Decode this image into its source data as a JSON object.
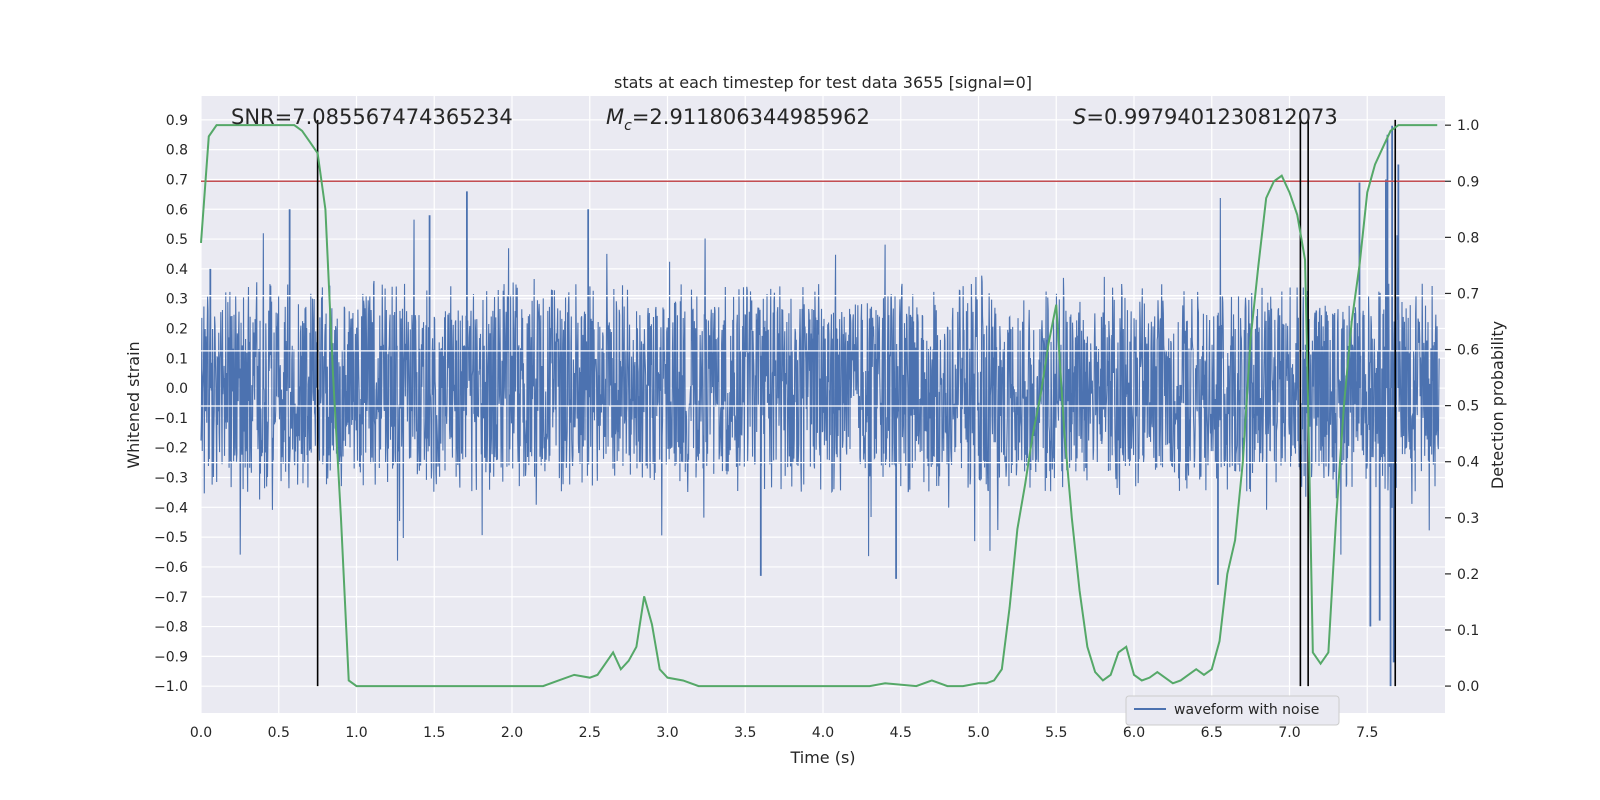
{
  "chart_data": {
    "type": "line",
    "title": "stats at each timestep for test data 3655 [signal=0]",
    "xlabel": "Time (s)",
    "ylabel_left": "Whitened strain",
    "ylabel_right": "Detection probability",
    "xlim": [
      0.0,
      8.0
    ],
    "ylim_left": [
      -1.09,
      0.98
    ],
    "ylim_right": [
      -0.048,
      1.052
    ],
    "x_ticks": [
      "0.0",
      "0.5",
      "1.0",
      "1.5",
      "2.0",
      "2.5",
      "3.0",
      "3.5",
      "4.0",
      "4.5",
      "5.0",
      "5.5",
      "6.0",
      "6.5",
      "7.0",
      "7.5"
    ],
    "x_tick_values": [
      0.0,
      0.5,
      1.0,
      1.5,
      2.0,
      2.5,
      3.0,
      3.5,
      4.0,
      4.5,
      5.0,
      5.5,
      6.0,
      6.5,
      7.0,
      7.5
    ],
    "y_left_ticks": [
      "0.9",
      "0.8",
      "0.7",
      "0.6",
      "0.5",
      "0.4",
      "0.3",
      "0.2",
      "0.1",
      "0.0",
      "−0.1",
      "−0.2",
      "−0.3",
      "−0.4",
      "−0.5",
      "−0.6",
      "−0.7",
      "−0.8",
      "−0.9",
      "−1.0"
    ],
    "y_left_tick_values": [
      0.9,
      0.8,
      0.7,
      0.6,
      0.5,
      0.4,
      0.3,
      0.2,
      0.1,
      0.0,
      -0.1,
      -0.2,
      -0.3,
      -0.4,
      -0.5,
      -0.6,
      -0.7,
      -0.8,
      -0.9,
      -1.0
    ],
    "y_right_ticks": [
      "1.0",
      "0.9",
      "0.8",
      "0.7",
      "0.6",
      "0.5",
      "0.4",
      "0.3",
      "0.2",
      "0.1",
      "0.0"
    ],
    "y_right_tick_values": [
      1.0,
      0.9,
      0.8,
      0.7,
      0.6,
      0.5,
      0.4,
      0.3,
      0.2,
      0.1,
      0.0
    ],
    "annotations": {
      "snr": "SNR=7.085567474365234",
      "mc_prefix": "M",
      "mc_sub": "c",
      "mc_value": "=2.911806344985962",
      "s_prefix": "S",
      "s_value": "=0.9979401230812073"
    },
    "threshold": {
      "axis": "right",
      "value": 0.9,
      "color": "#c44e52"
    },
    "vertical_lines": [
      0.75,
      7.07,
      7.12,
      7.68
    ],
    "vertical_line_range": [
      -1.0,
      0.9
    ],
    "waveform": {
      "name": "waveform with noise",
      "color": "#4c72b0",
      "core_amplitude": 0.27,
      "spike_amplitude": 0.38,
      "samples": 3000,
      "seed": 3655,
      "outliers": [
        {
          "x": 1.71,
          "y": 0.66
        },
        {
          "x": 4.47,
          "y": -0.64
        },
        {
          "x": 3.6,
          "y": -0.63
        },
        {
          "x": 6.54,
          "y": -0.66
        },
        {
          "x": 7.66,
          "y": 0.88
        },
        {
          "x": 7.63,
          "y": 0.85
        },
        {
          "x": 7.65,
          "y": -1.0
        },
        {
          "x": 7.67,
          "y": -0.92
        },
        {
          "x": 7.7,
          "y": 0.75
        },
        {
          "x": 7.62,
          "y": 0.7
        },
        {
          "x": 7.52,
          "y": -0.8
        },
        {
          "x": 7.58,
          "y": -0.78
        },
        {
          "x": 7.45,
          "y": 0.69
        },
        {
          "x": 0.06,
          "y": 0.4
        },
        {
          "x": 1.47,
          "y": 0.58
        },
        {
          "x": 0.57,
          "y": 0.6
        },
        {
          "x": 2.49,
          "y": 0.6
        }
      ]
    },
    "detection": {
      "color": "#55a868",
      "x": [
        0.0,
        0.05,
        0.1,
        0.15,
        0.2,
        0.3,
        0.4,
        0.5,
        0.6,
        0.65,
        0.7,
        0.75,
        0.8,
        0.85,
        0.9,
        0.95,
        1.0,
        1.1,
        1.3,
        1.5,
        1.7,
        1.9,
        2.1,
        2.2,
        2.3,
        2.4,
        2.5,
        2.55,
        2.6,
        2.65,
        2.7,
        2.75,
        2.8,
        2.85,
        2.9,
        2.95,
        3.0,
        3.1,
        3.2,
        3.3,
        3.5,
        3.7,
        3.8,
        4.0,
        4.2,
        4.3,
        4.4,
        4.6,
        4.7,
        4.8,
        4.9,
        5.0,
        5.05,
        5.1,
        5.15,
        5.2,
        5.25,
        5.3,
        5.35,
        5.4,
        5.45,
        5.5,
        5.55,
        5.6,
        5.65,
        5.7,
        5.75,
        5.8,
        5.85,
        5.9,
        5.95,
        6.0,
        6.05,
        6.1,
        6.15,
        6.2,
        6.25,
        6.3,
        6.35,
        6.4,
        6.45,
        6.5,
        6.55,
        6.6,
        6.65,
        6.7,
        6.75,
        6.8,
        6.85,
        6.9,
        6.95,
        7.0,
        7.05,
        7.1,
        7.12,
        7.15,
        7.2,
        7.25,
        7.3,
        7.35,
        7.4,
        7.45,
        7.5,
        7.55,
        7.6,
        7.65,
        7.7,
        7.75,
        7.8,
        7.85,
        7.9,
        7.95
      ],
      "y": [
        0.79,
        0.98,
        1.0,
        1.0,
        1.0,
        1.0,
        1.0,
        1.0,
        1.0,
        0.99,
        0.97,
        0.95,
        0.85,
        0.55,
        0.3,
        0.01,
        0.0,
        0.0,
        0.0,
        0.0,
        0.0,
        0.0,
        0.0,
        0.0,
        0.01,
        0.02,
        0.015,
        0.02,
        0.04,
        0.06,
        0.03,
        0.045,
        0.07,
        0.16,
        0.11,
        0.03,
        0.015,
        0.01,
        0.0,
        0.0,
        0.0,
        0.0,
        0.0,
        0.0,
        0.0,
        0.0,
        0.005,
        0.0,
        0.01,
        0.0,
        0.0,
        0.005,
        0.005,
        0.01,
        0.03,
        0.14,
        0.28,
        0.36,
        0.45,
        0.52,
        0.61,
        0.68,
        0.46,
        0.3,
        0.17,
        0.07,
        0.025,
        0.01,
        0.02,
        0.06,
        0.07,
        0.02,
        0.01,
        0.015,
        0.025,
        0.015,
        0.005,
        0.01,
        0.02,
        0.03,
        0.02,
        0.03,
        0.08,
        0.2,
        0.26,
        0.4,
        0.62,
        0.75,
        0.87,
        0.9,
        0.91,
        0.88,
        0.84,
        0.76,
        0.5,
        0.06,
        0.04,
        0.06,
        0.3,
        0.5,
        0.65,
        0.75,
        0.88,
        0.93,
        0.96,
        0.99,
        1.0,
        1.0,
        1.0,
        1.0,
        1.0,
        1.0
      ]
    }
  }
}
